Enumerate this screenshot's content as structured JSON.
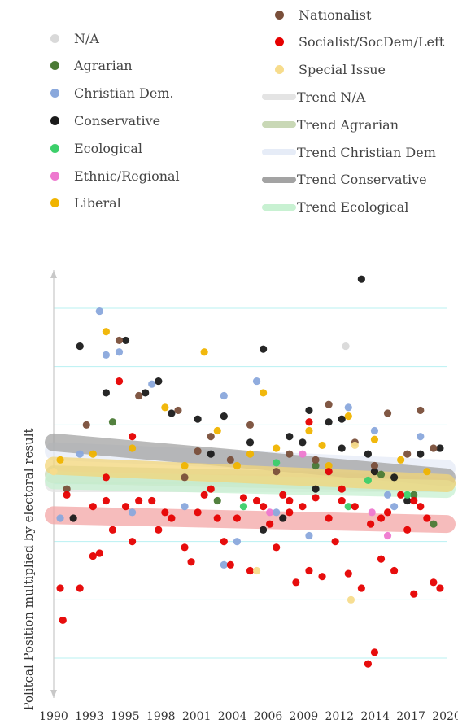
{
  "chart_data": {
    "type": "scatter",
    "ylabel": "Politcal Position multiplied by electoral result",
    "xlabel": "",
    "xlim": [
      1990,
      2020
    ],
    "ylim": [
      -3.6,
      3.6
    ],
    "x_ticks": [
      "1990",
      "1993",
      "1995",
      "1998",
      "2001",
      "2004",
      "2006",
      "2009",
      "2012",
      "2014",
      "2017",
      "2020"
    ],
    "grid": "horizontal",
    "legend_placement": "top",
    "legend": [
      {
        "name": "N/A",
        "kind": "dot",
        "color": "#d9d9d9"
      },
      {
        "name": "Agrarian",
        "kind": "dot",
        "color": "#4a7a35"
      },
      {
        "name": "Christian Dem.",
        "kind": "dot",
        "color": "#8aa8dc"
      },
      {
        "name": "Conservative",
        "kind": "dot",
        "color": "#1a1a1a"
      },
      {
        "name": "Ecological",
        "kind": "dot",
        "color": "#3ccf6a"
      },
      {
        "name": "Ethnic/Regional",
        "kind": "dot",
        "color": "#ee78cf"
      },
      {
        "name": "Liberal",
        "kind": "dot",
        "color": "#f0b400"
      },
      {
        "name": "Nationalist",
        "kind": "dot",
        "color": "#7a4f3a"
      },
      {
        "name": "Socialist/SocDem/Left",
        "kind": "dot",
        "color": "#e60000"
      },
      {
        "name": "Special Issue",
        "kind": "dot",
        "color": "#f7dc8c"
      },
      {
        "name": "Trend N/A",
        "kind": "line",
        "color": "#e4e4e4"
      },
      {
        "name": "Trend Agrarian",
        "kind": "line",
        "color": "#c9d8b6"
      },
      {
        "name": "Trend Christian Dem",
        "kind": "line",
        "color": "#e6ecf7"
      },
      {
        "name": "Trend Conservative",
        "kind": "line",
        "color": "#a3a3a3"
      },
      {
        "name": "Trend Ecological",
        "kind": "line",
        "color": "#c8f1d2"
      }
    ],
    "series": [
      {
        "name": "N/A",
        "color": "#d9d9d9",
        "points": [
          [
            2012.3,
            2.35
          ]
        ]
      },
      {
        "name": "Agrarian",
        "color": "#4a7a35",
        "points": [
          [
            1994.5,
            1.05
          ],
          [
            2002.5,
            -0.3
          ],
          [
            2010,
            0.3
          ],
          [
            2015,
            0.15
          ],
          [
            2017.5,
            -0.2
          ],
          [
            2019,
            -0.7
          ]
        ]
      },
      {
        "name": "Christian Dem.",
        "color": "#8aa8dc",
        "points": [
          [
            1993.5,
            2.95
          ],
          [
            1994,
            2.2
          ],
          [
            1995,
            2.25
          ],
          [
            1997.5,
            1.7
          ],
          [
            2003,
            1.5
          ],
          [
            2004,
            -1.0
          ],
          [
            2005.5,
            1.75
          ],
          [
            1990.5,
            -0.6
          ],
          [
            1996,
            -0.5
          ],
          [
            1992,
            0.5
          ],
          [
            2000,
            -0.4
          ],
          [
            2009.5,
            -0.9
          ],
          [
            2012.5,
            1.3
          ],
          [
            2014.5,
            0.9
          ],
          [
            2016,
            -0.4
          ],
          [
            2018,
            0.8
          ],
          [
            2007,
            -0.5
          ],
          [
            2011,
            0.2
          ],
          [
            2003,
            -1.4
          ],
          [
            2015.5,
            -0.2
          ]
        ]
      },
      {
        "name": "Conservative",
        "color": "#1a1a1a",
        "points": [
          [
            1992,
            2.35
          ],
          [
            1995.5,
            2.45
          ],
          [
            1994,
            1.55
          ],
          [
            1997,
            1.55
          ],
          [
            1998,
            1.75
          ],
          [
            1999,
            1.2
          ],
          [
            2001,
            1.1
          ],
          [
            2003,
            1.15
          ],
          [
            2006,
            2.3
          ],
          [
            2005,
            0.7
          ],
          [
            2008,
            0.8
          ],
          [
            2009.5,
            1.25
          ],
          [
            2011,
            1.05
          ],
          [
            2013.5,
            3.5
          ],
          [
            2012,
            0.6
          ],
          [
            2014,
            0.5
          ],
          [
            2016,
            0.1
          ],
          [
            2018,
            0.5
          ],
          [
            2019.5,
            0.6
          ],
          [
            1991.5,
            -0.6
          ],
          [
            2007.5,
            -0.6
          ],
          [
            2009,
            0.7
          ],
          [
            2012,
            1.1
          ],
          [
            2014.5,
            0.2
          ],
          [
            2017,
            -0.3
          ],
          [
            2010,
            -0.1
          ],
          [
            2006,
            -0.8
          ],
          [
            2002,
            0.5
          ]
        ]
      },
      {
        "name": "Ecological",
        "color": "#3ccf6a",
        "points": [
          [
            2007,
            0.35
          ],
          [
            2012.5,
            -0.4
          ],
          [
            2014,
            0.05
          ],
          [
            2017,
            -0.2
          ],
          [
            2004.5,
            -0.4
          ]
        ]
      },
      {
        "name": "Ethnic/Regional",
        "color": "#ee78cf",
        "points": [
          [
            2006.5,
            -0.5
          ],
          [
            2009,
            0.5
          ],
          [
            2014.3,
            -0.5
          ],
          [
            2015.5,
            -0.9
          ]
        ]
      },
      {
        "name": "Liberal",
        "color": "#f0b400",
        "points": [
          [
            1994,
            2.6
          ],
          [
            2001.5,
            2.25
          ],
          [
            1998.5,
            1.3
          ],
          [
            2006,
            1.55
          ],
          [
            2010.5,
            0.65
          ],
          [
            2012.5,
            1.15
          ],
          [
            2014.5,
            0.75
          ],
          [
            2002.5,
            0.9
          ],
          [
            2005,
            0.5
          ],
          [
            1996,
            0.6
          ],
          [
            1990.5,
            0.4
          ],
          [
            2016.5,
            0.4
          ],
          [
            2009.5,
            0.9
          ],
          [
            2000,
            0.3
          ],
          [
            2007,
            0.6
          ],
          [
            2011,
            0.3
          ],
          [
            2018.5,
            0.2
          ],
          [
            1993,
            0.5
          ],
          [
            2004,
            0.3
          ]
        ]
      },
      {
        "name": "Nationalist",
        "color": "#7a4f3a",
        "points": [
          [
            1995,
            2.45
          ],
          [
            1992.5,
            1.0
          ],
          [
            1996.5,
            1.5
          ],
          [
            1999.5,
            1.25
          ],
          [
            2002,
            0.8
          ],
          [
            2005,
            1.0
          ],
          [
            2008,
            0.5
          ],
          [
            2011,
            1.35
          ],
          [
            2013,
            0.7
          ],
          [
            2015.5,
            1.2
          ],
          [
            2018,
            1.25
          ],
          [
            2019,
            0.6
          ],
          [
            2017,
            0.5
          ],
          [
            2010,
            0.4
          ],
          [
            2003.5,
            0.4
          ],
          [
            2001,
            0.55
          ],
          [
            2014.5,
            0.3
          ],
          [
            2007,
            0.2
          ],
          [
            1991,
            -0.1
          ],
          [
            2000,
            0.1
          ]
        ]
      },
      {
        "name": "Socialist/SocDem/Left",
        "color": "#e60000",
        "points": [
          [
            1990.5,
            -1.8
          ],
          [
            1990.7,
            -2.35
          ],
          [
            1992,
            -1.8
          ],
          [
            1993,
            -1.25
          ],
          [
            1993.5,
            -1.2
          ],
          [
            1994,
            -0.3
          ],
          [
            1994.5,
            -0.8
          ],
          [
            1995.5,
            -0.4
          ],
          [
            1996,
            -1.0
          ],
          [
            1997.5,
            -0.3
          ],
          [
            1998,
            -0.8
          ],
          [
            1999,
            -0.6
          ],
          [
            2000,
            -1.1
          ],
          [
            2000.5,
            -1.35
          ],
          [
            2001,
            -0.5
          ],
          [
            2002.5,
            -0.6
          ],
          [
            2003,
            -1.0
          ],
          [
            2003.5,
            -1.4
          ],
          [
            2005,
            -1.5
          ],
          [
            2006,
            -0.4
          ],
          [
            2007,
            -1.1
          ],
          [
            2008,
            -0.5
          ],
          [
            2008.5,
            -1.7
          ],
          [
            2009.5,
            -1.5
          ],
          [
            2010.5,
            -1.6
          ],
          [
            2011.5,
            -1.0
          ],
          [
            2012,
            -0.3
          ],
          [
            2012.5,
            -1.55
          ],
          [
            2013.5,
            -1.8
          ],
          [
            2014,
            -3.1
          ],
          [
            2014.5,
            -2.9
          ],
          [
            2015,
            -1.3
          ],
          [
            2016,
            -1.5
          ],
          [
            2017,
            -0.8
          ],
          [
            2017.5,
            -1.9
          ],
          [
            2018,
            -0.4
          ],
          [
            2019,
            -1.7
          ],
          [
            2019.5,
            -1.8
          ],
          [
            1995,
            1.75
          ],
          [
            2009.5,
            1.05
          ],
          [
            2011,
            0.2
          ],
          [
            1991,
            -0.2
          ],
          [
            1996.5,
            -0.3
          ],
          [
            1998.5,
            -0.5
          ],
          [
            2001.5,
            -0.2
          ],
          [
            2004,
            -0.6
          ],
          [
            2005.5,
            -0.3
          ],
          [
            2006.5,
            -0.7
          ],
          [
            2007.5,
            -0.2
          ],
          [
            2009,
            -0.4
          ],
          [
            2010,
            -0.25
          ],
          [
            2011,
            -0.6
          ],
          [
            2013,
            -0.4
          ],
          [
            2014.2,
            -0.7
          ],
          [
            2015.5,
            -0.5
          ],
          [
            2016.5,
            -0.2
          ],
          [
            2018.5,
            -0.6
          ],
          [
            1993,
            -0.4
          ],
          [
            1994,
            0.1
          ],
          [
            1996,
            0.8
          ],
          [
            2002,
            -0.1
          ],
          [
            2004.5,
            -0.25
          ],
          [
            2008,
            -0.3
          ],
          [
            2012,
            -0.1
          ],
          [
            2015,
            -0.6
          ],
          [
            2017.5,
            -0.3
          ]
        ]
      },
      {
        "name": "Special Issue",
        "color": "#f7dc8c",
        "points": [
          [
            2012.7,
            -2.0
          ],
          [
            2005.5,
            -1.5
          ],
          [
            2013,
            0.65
          ],
          [
            1990,
            0.2
          ]
        ]
      }
    ],
    "trends": [
      {
        "name": "Trend N/A",
        "color": "#e4e4e4",
        "from": [
          1990,
          0.0
        ],
        "to": [
          2020,
          0.0
        ]
      },
      {
        "name": "Trend Agrarian",
        "color": "#c9d8b6",
        "from": [
          1990,
          0.15
        ],
        "to": [
          2020,
          0.0
        ]
      },
      {
        "name": "Trend Christian Dem",
        "color": "#e6ecf7",
        "from": [
          1990,
          0.55
        ],
        "to": [
          2020,
          0.25
        ]
      },
      {
        "name": "Trend Conservative",
        "color": "#a3a3a3",
        "from": [
          1990,
          0.7
        ],
        "to": [
          2020,
          0.1
        ]
      },
      {
        "name": "Trend Ecological",
        "color": "#c8f1d2",
        "from": [
          1990,
          0.05
        ],
        "to": [
          2020,
          -0.1
        ]
      },
      {
        "name": "Trend Liberal",
        "color": "#f3d67a",
        "from": [
          1990,
          0.3
        ],
        "to": [
          2020,
          0.0
        ]
      },
      {
        "name": "Trend Socialist",
        "color": "#f4a6a6",
        "from": [
          1990,
          -0.55
        ],
        "to": [
          2020,
          -0.7
        ]
      }
    ]
  }
}
